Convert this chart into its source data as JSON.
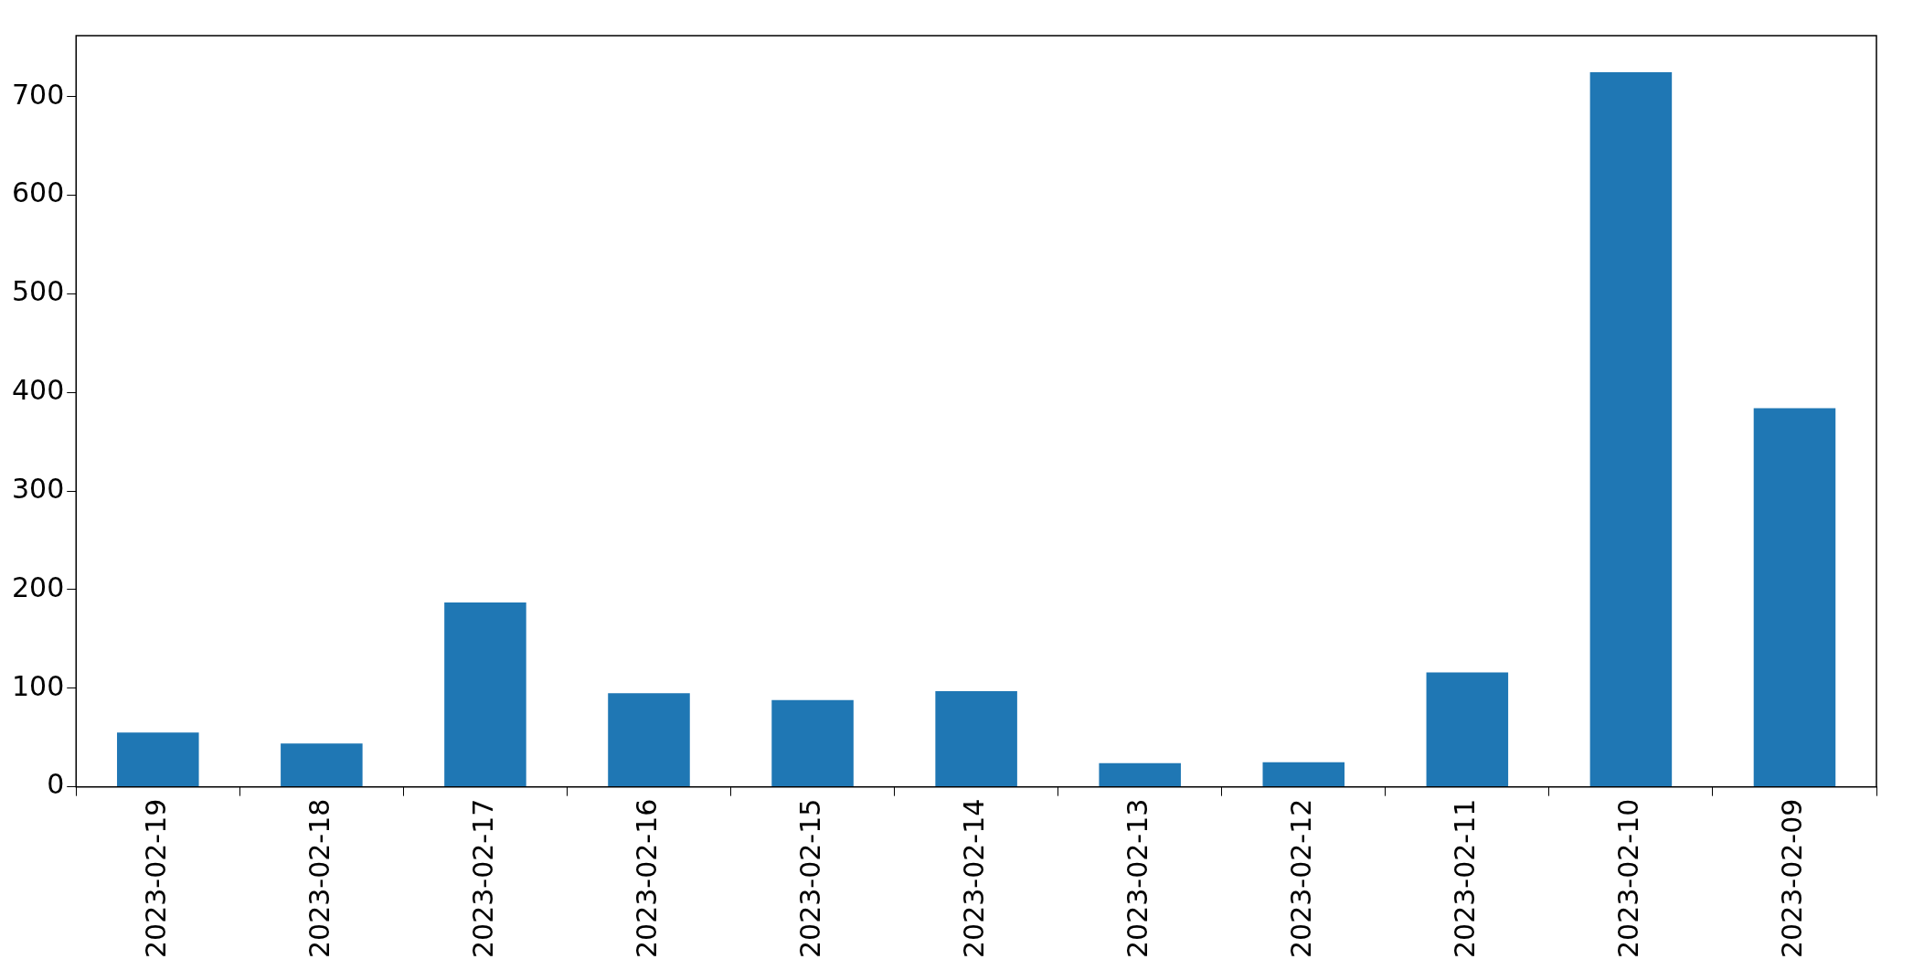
{
  "chart_data": {
    "type": "bar",
    "categories": [
      "2023-02-19",
      "2023-02-18",
      "2023-02-17",
      "2023-02-16",
      "2023-02-15",
      "2023-02-14",
      "2023-02-13",
      "2023-02-12",
      "2023-02-11",
      "2023-02-10",
      "2023-02-09"
    ],
    "values": [
      55,
      44,
      187,
      95,
      88,
      97,
      24,
      25,
      116,
      725,
      384
    ],
    "color": "#1f77b4",
    "ylim": [
      0,
      762
    ],
    "yticks": [
      0,
      100,
      200,
      300,
      400,
      500,
      600,
      700
    ],
    "grid": false,
    "legend": false
  }
}
